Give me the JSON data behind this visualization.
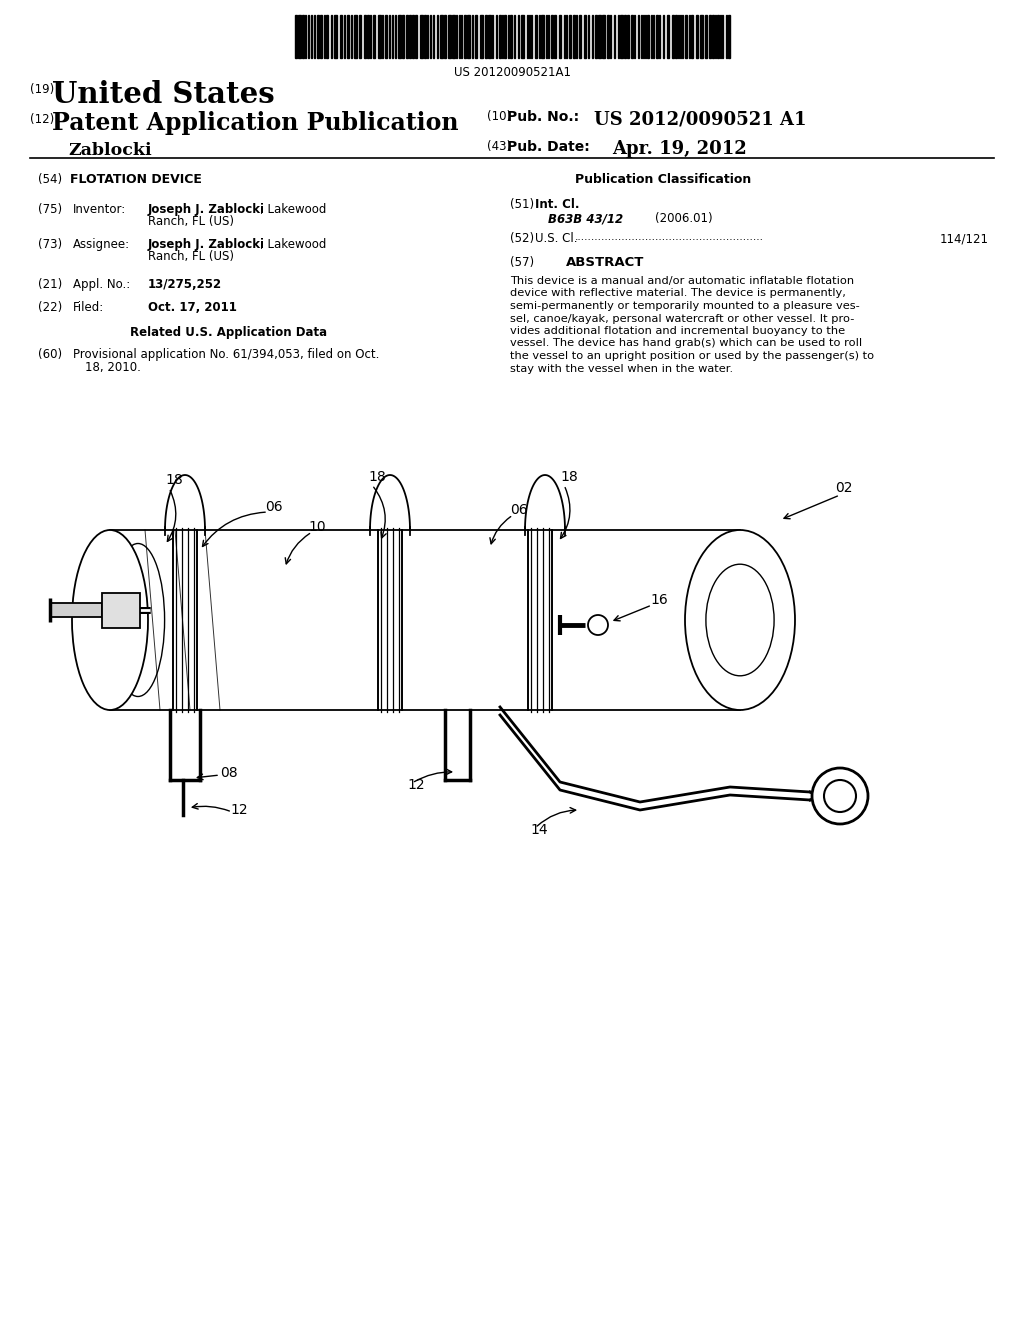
{
  "bg_color": "#ffffff",
  "barcode_text": "US 20120090521A1",
  "text_color": "#000000",
  "header": {
    "label_19": "(19)",
    "united_states": "United States",
    "label_12": "(12)",
    "patent_app_pub": "Patent Application Publication",
    "inventor_name": "Zablocki",
    "label_10": "(10)",
    "pub_no_label": "Pub. No.:",
    "pub_no_value": "US 2012/0090521 A1",
    "label_43": "(43)",
    "pub_date_label": "Pub. Date:",
    "pub_date_value": "Apr. 19, 2012"
  },
  "body_left": {
    "label_54": "(54)",
    "title": "FLOTATION DEVICE",
    "label_75": "(75)",
    "inventor_label": "Inventor:",
    "inventor_bold": "Joseph J. Zablocki",
    "inventor_rest": ", Lakewood",
    "inventor_line2": "Ranch, FL (US)",
    "label_73": "(73)",
    "assignee_label": "Assignee:",
    "assignee_bold": "Joseph J. Zablocki",
    "assignee_rest": ", Lakewood",
    "assignee_line2": "Ranch, FL (US)",
    "label_21": "(21)",
    "appl_no_label": "Appl. No.:",
    "appl_no_value": "13/275,252",
    "label_22": "(22)",
    "filed_label": "Filed:",
    "filed_value": "Oct. 17, 2011",
    "related_label": "Related U.S. Application Data",
    "label_60": "(60)",
    "related_text": "Provisional application No. 61/394,053, filed on Oct.\n18, 2010."
  },
  "body_right": {
    "pub_class": "Publication Classification",
    "label_51": "(51)",
    "int_cl_label": "Int. Cl.",
    "int_cl_value": "B63B 43/12",
    "int_cl_year": "(2006.01)",
    "label_52": "(52)",
    "us_cl_label": "U.S. Cl.",
    "us_cl_dots": "........................................................",
    "us_cl_value": "114/121",
    "label_57": "(57)",
    "abstract_label": "ABSTRACT",
    "abstract_lines": [
      "This device is a manual and/or automatic inflatable flotation",
      "device with reflective material. The device is permanently,",
      "semi-permanently or temporarily mounted to a pleasure ves-",
      "sel, canoe/kayak, personal watercraft or other vessel. It pro-",
      "vides additional flotation and incremental buoyancy to the",
      "vessel. The device has hand grab(s) which can be used to roll",
      "the vessel to an upright position or used by the passenger(s) to",
      "stay with the vessel when in the water."
    ]
  }
}
